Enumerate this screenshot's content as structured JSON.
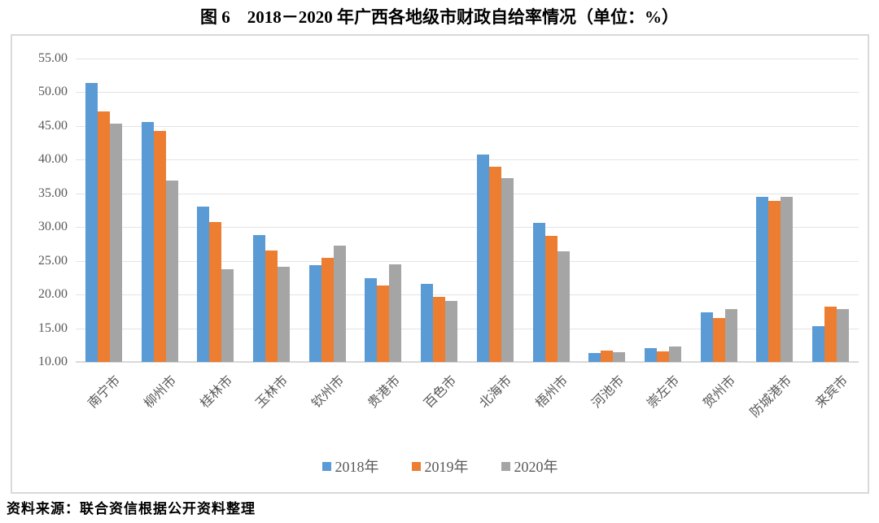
{
  "chart_data": {
    "type": "bar",
    "title": "图 6　2018－2020 年广西各地级市财政自给率情况（单位：%）",
    "unit": "%",
    "categories": [
      "南宁市",
      "柳州市",
      "桂林市",
      "玉林市",
      "钦州市",
      "贵港市",
      "百色市",
      "北海市",
      "梧州市",
      "河池市",
      "崇左市",
      "贺州市",
      "防城港市",
      "来宾市"
    ],
    "series": [
      {
        "name": "2018年",
        "color": "#5B9BD5",
        "values": [
          51.4,
          45.6,
          33.1,
          28.8,
          24.3,
          22.4,
          21.6,
          40.8,
          30.6,
          11.3,
          12.0,
          17.4,
          34.5,
          15.3
        ]
      },
      {
        "name": "2019年",
        "color": "#ED7D31",
        "values": [
          47.1,
          44.3,
          30.7,
          26.5,
          25.5,
          21.4,
          19.6,
          38.9,
          28.7,
          11.7,
          11.6,
          16.5,
          33.9,
          18.2
        ]
      },
      {
        "name": "2020年",
        "color": "#A5A5A5",
        "values": [
          45.3,
          36.9,
          23.7,
          24.1,
          27.3,
          24.5,
          19.0,
          37.3,
          26.4,
          11.4,
          12.3,
          17.8,
          34.5,
          17.9
        ]
      }
    ],
    "ylim": [
      10,
      55
    ],
    "ytick_step": 5,
    "ytick_decimals": 2,
    "grid": true,
    "legend_position": "bottom",
    "axis_label_color": "#595959",
    "gridline_color": "#E3E3E3"
  },
  "source_note": "资料来源：联合资信根据公开资料整理"
}
